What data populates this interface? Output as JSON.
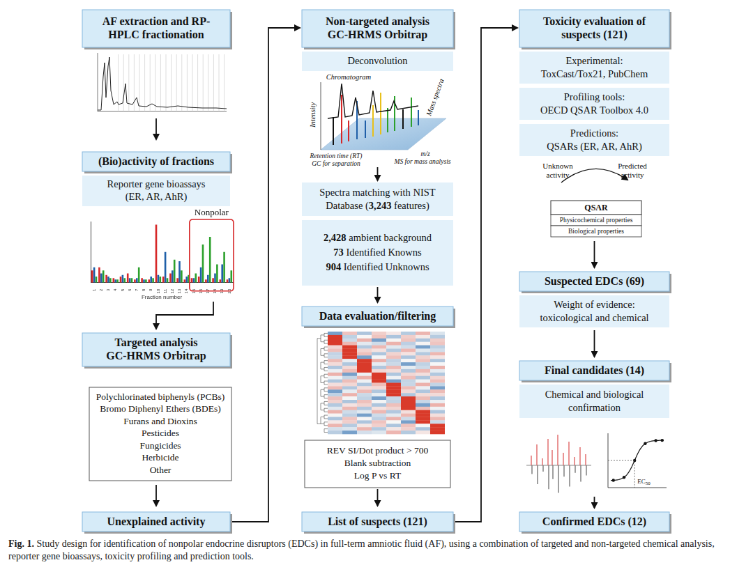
{
  "figure": {
    "col1": {
      "header": [
        "AF extraction and RP-",
        "HPLC fractionation"
      ],
      "bioactivity_header": "(Bio)activity of fractions",
      "bioassay": [
        "Reporter gene bioassays",
        "(ER, AR, AhR)"
      ],
      "targeted_header": [
        "Targeted analysis",
        "GC-HRMS Orbitrap"
      ],
      "compounds": [
        "Polychlorinated biphenyls (PCBs)",
        "Bromo Diphenyl Ethers (BDEs)",
        "Furans and Dioxins",
        "Pesticides",
        "Fungicides",
        "Herbicide",
        "Other"
      ],
      "result": "Unexplained activity"
    },
    "col2": {
      "header": [
        "Non-targeted analysis",
        "GC-HRMS Orbitrap"
      ],
      "deconvolution": "Deconvolution",
      "plot_labels": {
        "chromatogram": "Chromatogram",
        "intensity": "Intensity",
        "mass_spectra": "Mass spectra",
        "retention_time": "Retention time (RT)",
        "gc": "GC for separation",
        "mz": "m/z",
        "ms": "MS for mass analysis"
      },
      "spectra_matching": [
        "Spectra matching with NIST",
        "Database (3,243 features)"
      ],
      "feature_counts": [
        "2,428 ambient background",
        "73 Identified Knowns",
        "904 Identified Unknowns"
      ],
      "filter_header": "Data evaluation/filtering",
      "filters": [
        "REV SI/Dot product > 700",
        "Blank subtraction",
        "Log P vs RT"
      ],
      "result": "List of suspects (121)"
    },
    "col3": {
      "header": [
        "Toxicity evaluation of",
        "suspects (121)"
      ],
      "experimental": [
        "Experimental:",
        "ToxCast/Tox21, PubChem"
      ],
      "profiling": [
        "Profiling tools:",
        "OECD QSAR Toolbox 4.0"
      ],
      "predictions": [
        "Predictions:",
        "QSARs (ER, AR, AhR)"
      ],
      "qsar": {
        "unknown": [
          "Unknown",
          "activity"
        ],
        "predicted": [
          "Predicted",
          "activity"
        ],
        "title": "QSAR",
        "rows": [
          "Physicochemical properties",
          "Biological properties"
        ]
      },
      "suspected_header": "Suspected EDCs (69)",
      "weight_of_evidence": [
        "Weight of evidence:",
        "toxicological and chemical"
      ],
      "final_header": "Final candidates (14)",
      "confirmation": [
        "Chemical and biological",
        "confirmation"
      ],
      "ec50": "EC50",
      "result": "Confirmed EDCs (12)"
    }
  },
  "caption": {
    "label": "Fig. 1.",
    "text": "Study design for identification of nonpolar endocrine disruptors (EDCs) in full-term amniotic fluid (AF), using a combination of targeted and non-targeted chemical analysis, reporter gene bioassays, toxicity profiling and prediction tools."
  },
  "chart_data": {
    "type": "bar",
    "x_label": "Fraction number",
    "categories": [
      "1",
      "2",
      "3",
      "4",
      "5",
      "6",
      "7",
      "8",
      "9",
      "10",
      "11",
      "12",
      "13",
      "14",
      "15",
      "16",
      "17",
      "18",
      "19",
      "20"
    ],
    "series": [
      {
        "color": "#d62728",
        "values": [
          8,
          10,
          5,
          3,
          4,
          6,
          2,
          3,
          2,
          38,
          4,
          6,
          3,
          2,
          3,
          4,
          2,
          3,
          2,
          2
        ]
      },
      {
        "color": "#1f5fa8",
        "values": [
          10,
          6,
          4,
          2,
          5,
          3,
          3,
          2,
          4,
          5,
          20,
          8,
          14,
          4,
          3,
          10,
          5,
          6,
          12,
          3
        ]
      },
      {
        "color": "#2ca02c",
        "values": [
          4,
          8,
          3,
          2,
          3,
          3,
          10,
          2,
          3,
          4,
          3,
          15,
          8,
          5,
          6,
          25,
          30,
          12,
          20,
          8
        ]
      }
    ],
    "ylim": [
      0,
      40
    ],
    "grid": false,
    "tick_labels": "x",
    "annotations": [
      {
        "text": "Nonpolar",
        "categories": [
          "15",
          "16",
          "17",
          "18",
          "19",
          "20"
        ]
      }
    ]
  }
}
